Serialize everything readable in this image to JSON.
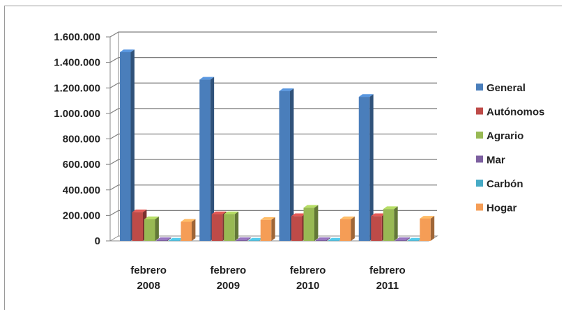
{
  "chart_data": {
    "type": "bar",
    "categories": [
      [
        "febrero",
        "2008"
      ],
      [
        "febrero",
        "2009"
      ],
      [
        "febrero",
        "2010"
      ],
      [
        "febrero",
        "2011"
      ]
    ],
    "ylim": [
      0,
      1600000
    ],
    "yticks": [
      {
        "value": 0,
        "label": "0"
      },
      {
        "value": 200000,
        "label": "200.000"
      },
      {
        "value": 400000,
        "label": "400.000"
      },
      {
        "value": 600000,
        "label": "600.000"
      },
      {
        "value": 800000,
        "label": "800.000"
      },
      {
        "value": 1000000,
        "label": "1.000.000"
      },
      {
        "value": 1200000,
        "label": "1.200.000"
      },
      {
        "value": 1400000,
        "label": "1.400.000"
      },
      {
        "value": 1600000,
        "label": "1.600.000"
      }
    ],
    "grid": true,
    "legend_position": "right",
    "series": [
      {
        "name": "General",
        "color": "#4a7ebb",
        "values": [
          1480000,
          1265000,
          1175000,
          1130000
        ]
      },
      {
        "name": "Autónomos",
        "color": "#be4b48",
        "values": [
          225000,
          210000,
          195000,
          195000
        ]
      },
      {
        "name": "Agrario",
        "color": "#98b954",
        "values": [
          170000,
          210000,
          260000,
          250000
        ]
      },
      {
        "name": "Mar",
        "color": "#7d60a0",
        "values": [
          6000,
          6000,
          6000,
          6000
        ]
      },
      {
        "name": "Carbón",
        "color": "#46aac5",
        "values": [
          2000,
          2000,
          2000,
          2000
        ]
      },
      {
        "name": "Hogar",
        "color": "#f59d56",
        "values": [
          150000,
          165000,
          170000,
          175000
        ]
      }
    ]
  }
}
